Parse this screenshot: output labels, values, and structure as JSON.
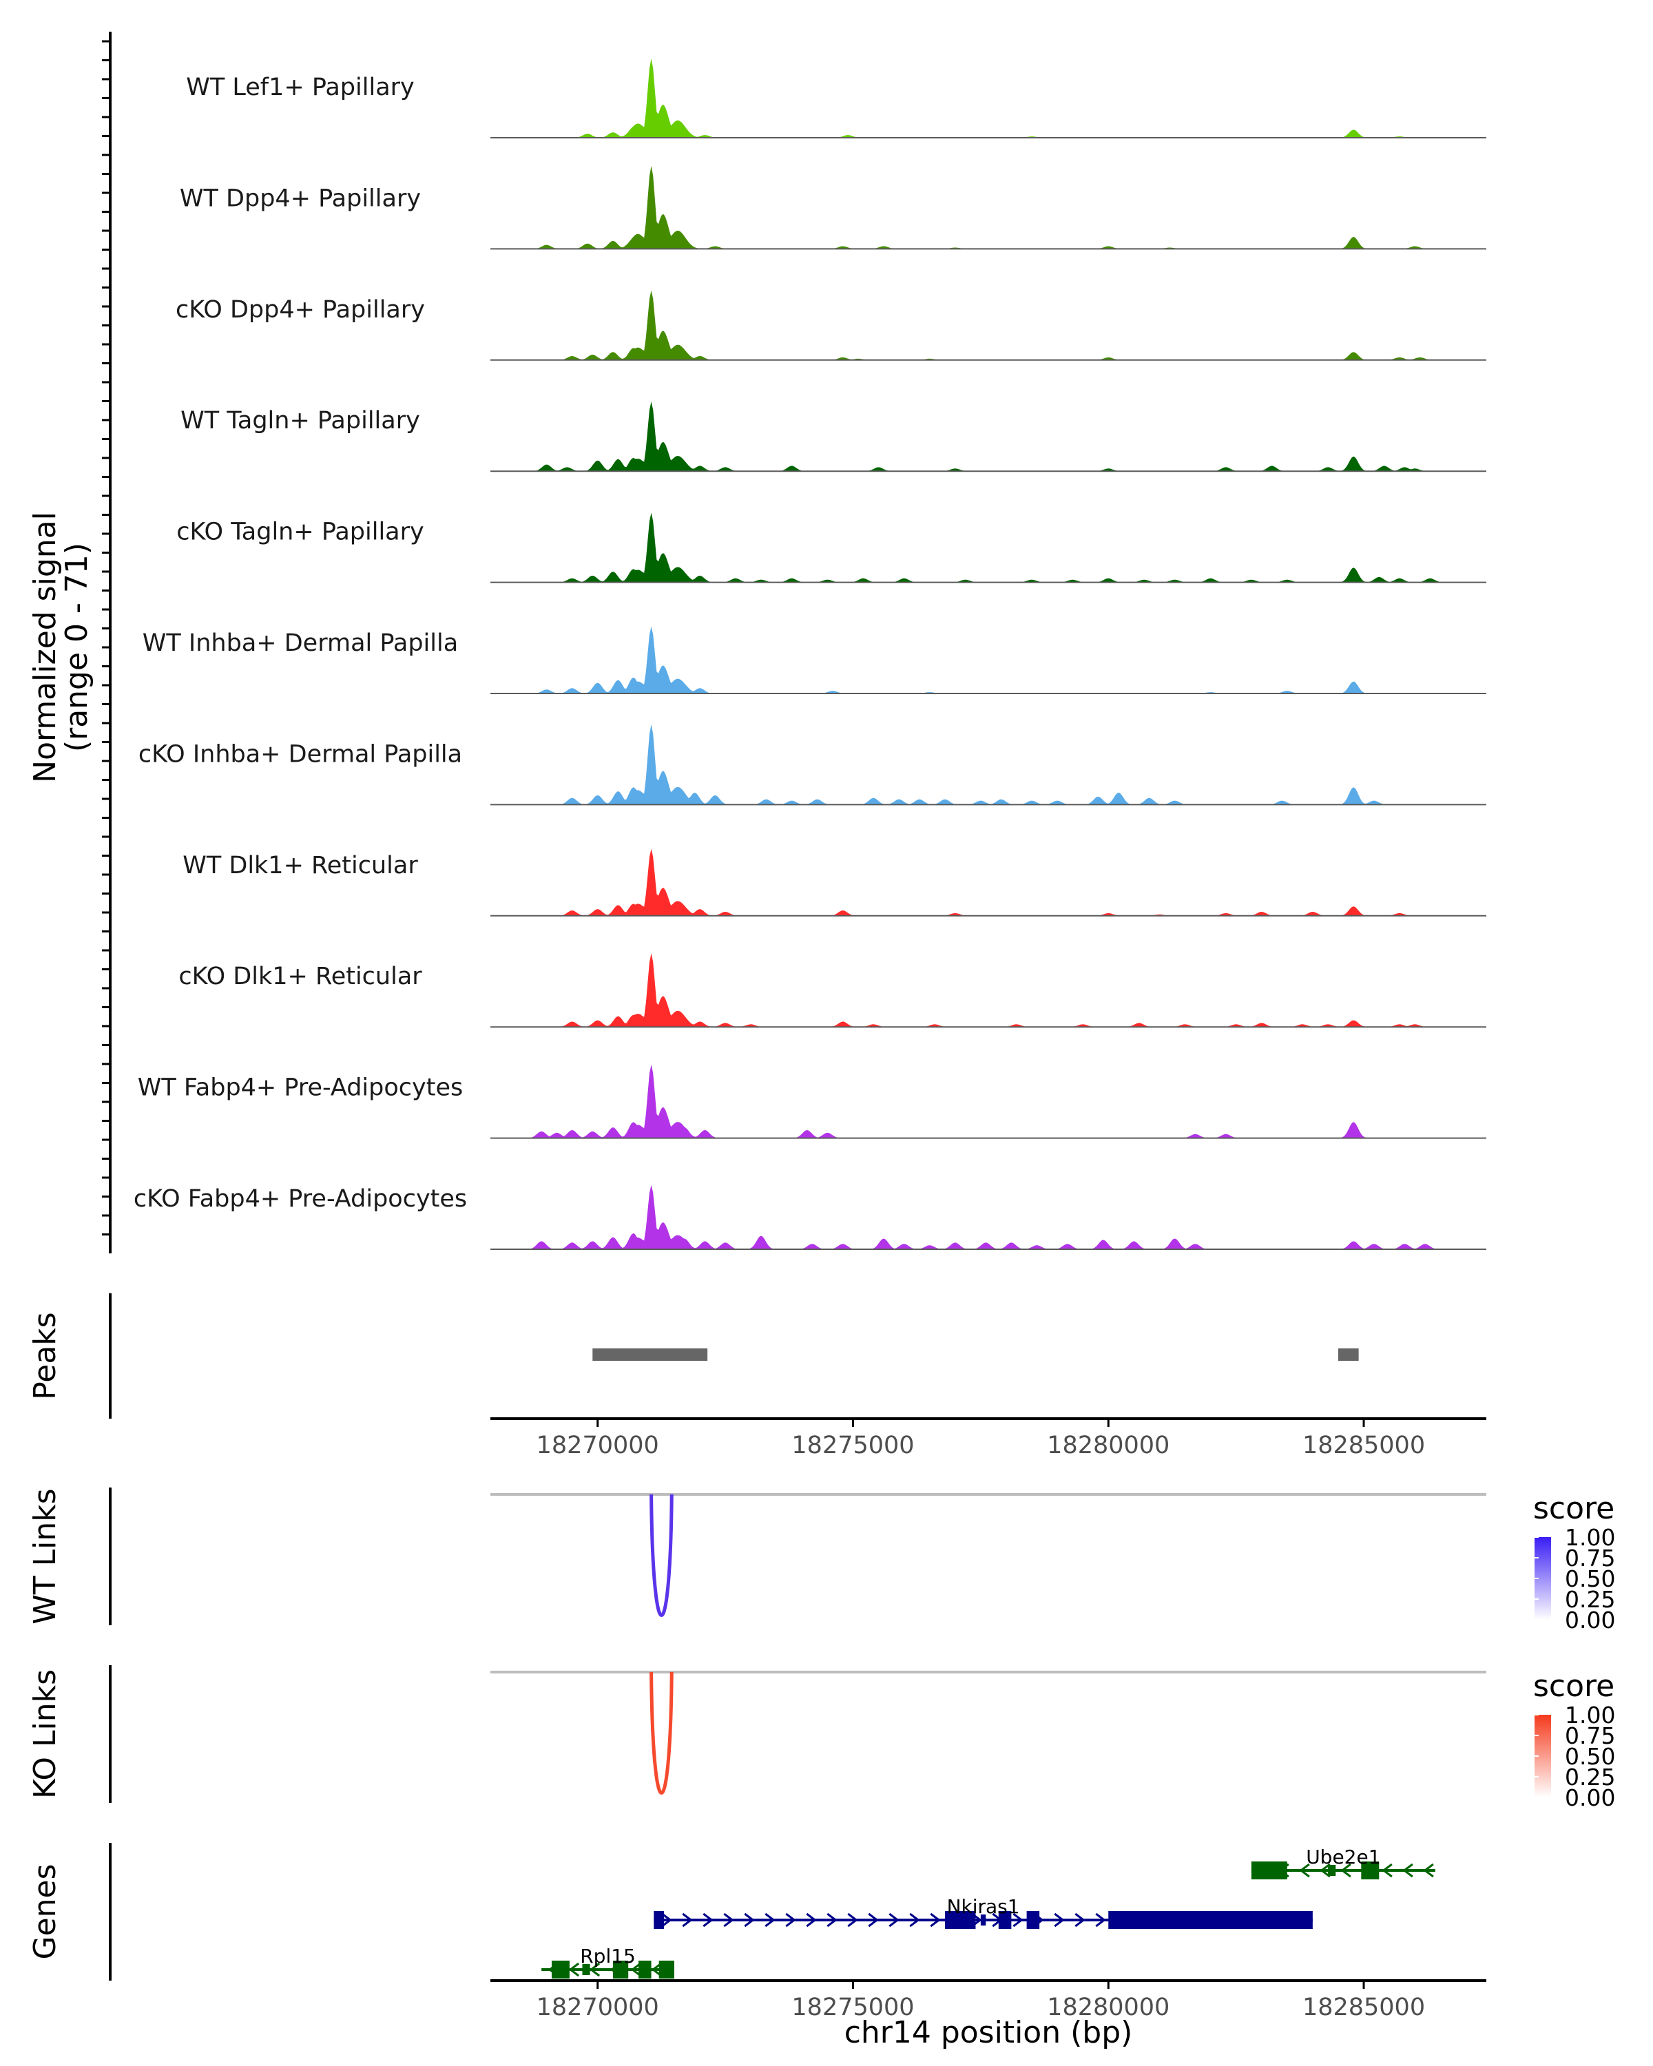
{
  "chart_data": {
    "type": "area",
    "region": "chr14",
    "x_axis": {
      "label": "chr14 position (bp)",
      "range": [
        18267900,
        18287400
      ],
      "ticks": [
        18270000,
        18275000,
        18280000,
        18285000
      ],
      "tick_labels": [
        "18270000",
        "18275000",
        "18280000",
        "18285000"
      ]
    },
    "coverage": {
      "ylabel": "Normalized signal",
      "ylabel_range": "(range 0 - 71)",
      "ylim": [
        0,
        71
      ],
      "tracks": [
        {
          "name": "WT Lef1+ Papillary",
          "color": "#66cd00",
          "peak": 59,
          "minor": [
            [
              18269800,
              3
            ],
            [
              18270300,
              4
            ],
            [
              18270700,
              8
            ],
            [
              18271700,
              3
            ],
            [
              18272100,
              2
            ],
            [
              18274900,
              2
            ],
            [
              18278500,
              1
            ],
            [
              18284800,
              6
            ],
            [
              18285700,
              1
            ]
          ]
        },
        {
          "name": "WT Dpp4+ Papillary",
          "color": "#458b00",
          "peak": 62,
          "minor": [
            [
              18269000,
              3
            ],
            [
              18269800,
              4
            ],
            [
              18270300,
              6
            ],
            [
              18270700,
              8
            ],
            [
              18271700,
              3
            ],
            [
              18272300,
              2
            ],
            [
              18274800,
              2
            ],
            [
              18275600,
              2
            ],
            [
              18277000,
              1
            ],
            [
              18280000,
              2
            ],
            [
              18281200,
              1
            ],
            [
              18284800,
              9
            ],
            [
              18286000,
              2
            ]
          ]
        },
        {
          "name": "cKO Dpp4+ Papillary",
          "color": "#458b00",
          "peak": 52,
          "minor": [
            [
              18269500,
              3
            ],
            [
              18269900,
              4
            ],
            [
              18270300,
              6
            ],
            [
              18270700,
              9
            ],
            [
              18271600,
              4
            ],
            [
              18272000,
              3
            ],
            [
              18274800,
              2
            ],
            [
              18275100,
              1
            ],
            [
              18276500,
              1
            ],
            [
              18280000,
              2
            ],
            [
              18284800,
              6
            ],
            [
              18285700,
              2
            ],
            [
              18286100,
              2
            ]
          ]
        },
        {
          "name": "WT Tagln+ Papillary",
          "color": "#006400",
          "peak": 52,
          "minor": [
            [
              18269000,
              5
            ],
            [
              18269400,
              3
            ],
            [
              18270000,
              8
            ],
            [
              18270400,
              9
            ],
            [
              18270700,
              10
            ],
            [
              18271600,
              6
            ],
            [
              18272000,
              4
            ],
            [
              18272500,
              3
            ],
            [
              18273800,
              4
            ],
            [
              18275500,
              3
            ],
            [
              18277000,
              2
            ],
            [
              18280000,
              2
            ],
            [
              18282300,
              3
            ],
            [
              18283200,
              4
            ],
            [
              18284300,
              3
            ],
            [
              18284800,
              11
            ],
            [
              18285400,
              4
            ],
            [
              18285800,
              3
            ],
            [
              18286000,
              2
            ]
          ]
        },
        {
          "name": "cKO Tagln+ Papillary",
          "color": "#006400",
          "peak": 52,
          "minor": [
            [
              18269500,
              3
            ],
            [
              18269900,
              5
            ],
            [
              18270300,
              8
            ],
            [
              18270700,
              10
            ],
            [
              18271600,
              6
            ],
            [
              18272000,
              5
            ],
            [
              18272700,
              3
            ],
            [
              18273200,
              2
            ],
            [
              18273800,
              3
            ],
            [
              18274500,
              2
            ],
            [
              18275200,
              3
            ],
            [
              18276000,
              3
            ],
            [
              18277200,
              2
            ],
            [
              18278500,
              2
            ],
            [
              18279300,
              2
            ],
            [
              18280000,
              3
            ],
            [
              18280700,
              2
            ],
            [
              18281300,
              2
            ],
            [
              18282000,
              3
            ],
            [
              18282800,
              2
            ],
            [
              18283500,
              2
            ],
            [
              18284800,
              11
            ],
            [
              18285300,
              4
            ],
            [
              18285700,
              3
            ],
            [
              18286300,
              3
            ]
          ]
        },
        {
          "name": "WT Inhba+ Dermal Papilla",
          "color": "#5aabe8",
          "peak": 50,
          "minor": [
            [
              18269000,
              3
            ],
            [
              18269500,
              4
            ],
            [
              18270000,
              8
            ],
            [
              18270400,
              10
            ],
            [
              18270700,
              12
            ],
            [
              18271600,
              7
            ],
            [
              18272000,
              4
            ],
            [
              18274600,
              2
            ],
            [
              18276500,
              1
            ],
            [
              18282000,
              1
            ],
            [
              18283500,
              2
            ],
            [
              18284800,
              9
            ]
          ]
        },
        {
          "name": "cKO Inhba+ Dermal Papilla",
          "color": "#5aabe8",
          "peak": 60,
          "minor": [
            [
              18269500,
              5
            ],
            [
              18270000,
              7
            ],
            [
              18270400,
              10
            ],
            [
              18270700,
              13
            ],
            [
              18271600,
              12
            ],
            [
              18271900,
              9
            ],
            [
              18272300,
              7
            ],
            [
              18273300,
              4
            ],
            [
              18273800,
              3
            ],
            [
              18274300,
              4
            ],
            [
              18275400,
              5
            ],
            [
              18275900,
              4
            ],
            [
              18276300,
              4
            ],
            [
              18276800,
              4
            ],
            [
              18277500,
              3
            ],
            [
              18277900,
              4
            ],
            [
              18278500,
              3
            ],
            [
              18279000,
              3
            ],
            [
              18279800,
              6
            ],
            [
              18280200,
              9
            ],
            [
              18280800,
              5
            ],
            [
              18281300,
              3
            ],
            [
              18283400,
              3
            ],
            [
              18284800,
              13
            ],
            [
              18285200,
              3
            ]
          ]
        },
        {
          "name": "WT Dlk1+ Reticular",
          "color": "#ff2b2b",
          "peak": 50,
          "minor": [
            [
              18269500,
              4
            ],
            [
              18270000,
              5
            ],
            [
              18270400,
              8
            ],
            [
              18270700,
              9
            ],
            [
              18271600,
              7
            ],
            [
              18272000,
              5
            ],
            [
              18272500,
              3
            ],
            [
              18274800,
              4
            ],
            [
              18277000,
              2
            ],
            [
              18280000,
              2
            ],
            [
              18281000,
              1
            ],
            [
              18282300,
              2
            ],
            [
              18283000,
              3
            ],
            [
              18284000,
              3
            ],
            [
              18284800,
              7
            ],
            [
              18285700,
              2
            ]
          ]
        },
        {
          "name": "cKO Dlk1+ Reticular",
          "color": "#ff2b2b",
          "peak": 55,
          "minor": [
            [
              18269500,
              4
            ],
            [
              18270000,
              5
            ],
            [
              18270400,
              8
            ],
            [
              18270700,
              9
            ],
            [
              18271600,
              7
            ],
            [
              18272000,
              4
            ],
            [
              18272500,
              3
            ],
            [
              18273000,
              2
            ],
            [
              18274800,
              4
            ],
            [
              18275400,
              2
            ],
            [
              18276600,
              2
            ],
            [
              18278200,
              2
            ],
            [
              18279500,
              2
            ],
            [
              18280600,
              3
            ],
            [
              18281500,
              2
            ],
            [
              18282500,
              2
            ],
            [
              18283000,
              3
            ],
            [
              18283800,
              2
            ],
            [
              18284300,
              2
            ],
            [
              18284800,
              5
            ],
            [
              18285700,
              2
            ],
            [
              18286000,
              2
            ]
          ]
        },
        {
          "name": "WT Fabp4+ Pre-Adipocytes",
          "color": "#b233e8",
          "peak": 55,
          "minor": [
            [
              18268900,
              5
            ],
            [
              18269200,
              4
            ],
            [
              18269500,
              6
            ],
            [
              18269900,
              5
            ],
            [
              18270300,
              8
            ],
            [
              18270700,
              12
            ],
            [
              18271700,
              8
            ],
            [
              18272100,
              6
            ],
            [
              18274100,
              6
            ],
            [
              18274500,
              4
            ],
            [
              18281700,
              3
            ],
            [
              18282300,
              3
            ],
            [
              18284800,
              12
            ]
          ]
        },
        {
          "name": "cKO Fabp4+ Pre-Adipocytes",
          "color": "#b233e8",
          "peak": 48,
          "minor": [
            [
              18268900,
              6
            ],
            [
              18269500,
              5
            ],
            [
              18269900,
              6
            ],
            [
              18270300,
              9
            ],
            [
              18270700,
              12
            ],
            [
              18271700,
              8
            ],
            [
              18272100,
              6
            ],
            [
              18272500,
              5
            ],
            [
              18273200,
              10
            ],
            [
              18274200,
              4
            ],
            [
              18274800,
              4
            ],
            [
              18275600,
              8
            ],
            [
              18276000,
              4
            ],
            [
              18276500,
              3
            ],
            [
              18277000,
              5
            ],
            [
              18277600,
              5
            ],
            [
              18278100,
              5
            ],
            [
              18278600,
              3
            ],
            [
              18279200,
              4
            ],
            [
              18279900,
              7
            ],
            [
              18280500,
              6
            ],
            [
              18281300,
              8
            ],
            [
              18281700,
              4
            ],
            [
              18284800,
              6
            ],
            [
              18285200,
              4
            ],
            [
              18285800,
              4
            ],
            [
              18286200,
              4
            ]
          ]
        }
      ]
    },
    "peaks": {
      "ylabel": "Peaks",
      "regions": [
        [
          18269900,
          18272150
        ],
        [
          18284500,
          18284900
        ]
      ],
      "color": "#666666"
    },
    "links": [
      {
        "ylabel": "WT Links",
        "anchors": [
          18271050,
          18271450
        ],
        "score": 0.8,
        "color": "#5a34ea",
        "legend": {
          "title": "score",
          "ticks": [
            "1.00",
            "0.75",
            "0.50",
            "0.25",
            "0.00"
          ],
          "colors": [
            "#3a1df5",
            "#ffffff"
          ]
        }
      },
      {
        "ylabel": "KO Links",
        "anchors": [
          18271050,
          18271450
        ],
        "score": 0.8,
        "color": "#f54a2e",
        "legend": {
          "title": "score",
          "ticks": [
            "1.00",
            "0.75",
            "0.50",
            "0.25",
            "0.00"
          ],
          "colors": [
            "#f53a1d",
            "#ffffff"
          ]
        }
      }
    ],
    "genes": {
      "ylabel": "Genes",
      "items": [
        {
          "name": "Ube2e1",
          "strand": "-",
          "start": 18282800,
          "end": 18286400,
          "color": "#006400",
          "row": 0,
          "exons": [
            [
              18282800,
              18283500,
              "wide"
            ],
            [
              18284300,
              18284450,
              "narrow"
            ],
            [
              18284950,
              18285300,
              "wide"
            ]
          ]
        },
        {
          "name": "Nkiras1",
          "strand": "+",
          "start": 18271100,
          "end": 18284000,
          "color": "#00008b",
          "row": 1,
          "exons": [
            [
              18271100,
              18271300,
              "wide"
            ],
            [
              18276800,
              18277400,
              "wide"
            ],
            [
              18277500,
              18277600,
              "narrow"
            ],
            [
              18277850,
              18278100,
              "wide"
            ],
            [
              18278400,
              18278650,
              "wide"
            ],
            [
              18280000,
              18284000,
              "wide"
            ]
          ]
        },
        {
          "name": "Rpl15",
          "strand": "-",
          "start": 18268900,
          "end": 18271500,
          "color": "#006400",
          "row": 2,
          "exons": [
            [
              18269100,
              18269450,
              "wide"
            ],
            [
              18269700,
              18269850,
              "narrow"
            ],
            [
              18270300,
              18270600,
              "wide"
            ],
            [
              18270800,
              18271050,
              "wide"
            ],
            [
              18271200,
              18271500,
              "wide"
            ]
          ]
        }
      ]
    }
  }
}
